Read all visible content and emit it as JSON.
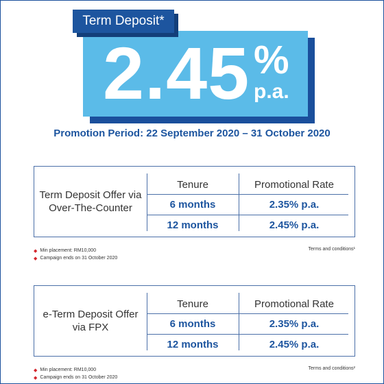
{
  "hero": {
    "tag": "Term Deposit*",
    "rate": "2.45",
    "percent": "%",
    "unit": "p.a.",
    "period": "Promotion Period: 22 September 2020 – 31 October 2020"
  },
  "offers": [
    {
      "label": "Term Deposit Offer via Over-The-Counter",
      "headers": [
        "Tenure",
        "Promotional Rate"
      ],
      "rows": [
        {
          "tenure": "6 months",
          "rate": "2.35% p.a."
        },
        {
          "tenure": "12 months",
          "rate": "2.45% p.a."
        }
      ],
      "notes": [
        "Min placement: RM10,000",
        "Campaign ends on 31 October 2020"
      ],
      "terms": "Terms and conditions¹"
    },
    {
      "label": "e-Term Deposit Offer via FPX",
      "headers": [
        "Tenure",
        "Promotional Rate"
      ],
      "rows": [
        {
          "tenure": "6 months",
          "rate": "2.35% p.a."
        },
        {
          "tenure": "12 months",
          "rate": "2.45% p.a."
        }
      ],
      "notes": [
        "Min placement: RM10,000",
        "Campaign ends on 31 October 2020"
      ],
      "terms": "Terms and conditions²"
    }
  ],
  "colors": {
    "brand_blue": "#1d559f",
    "rate_box": "#5bbbe8",
    "bullet_red": "#d4262d"
  }
}
